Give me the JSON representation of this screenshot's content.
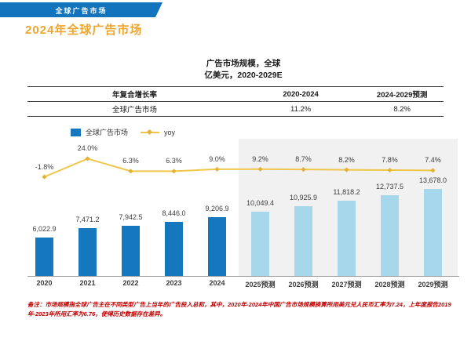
{
  "banner": {
    "label": "全球广告市场",
    "color": "#1274BC"
  },
  "title": {
    "text": "2024年全球广告市场",
    "color": "#EFA62F"
  },
  "table": {
    "headers": [
      "年复合增长率",
      "2020-2024",
      "2024-2029预测"
    ],
    "rows": [
      [
        "全球广告市场",
        "11.2%",
        "8.2%"
      ]
    ]
  },
  "legend": {
    "bar_label": "全球广告市场",
    "line_label": "yoy"
  },
  "chart_data": {
    "type": "bar",
    "title": "广告市场规模，全球",
    "subtitle": "亿美元，2020-2029E",
    "categories": [
      "2020",
      "2021",
      "2022",
      "2023",
      "2024",
      "2025预测",
      "2026预测",
      "2027预测",
      "2028预测",
      "2029预测"
    ],
    "series": [
      {
        "name": "全球广告市场",
        "type": "bar",
        "values": [
          6022.9,
          7471.2,
          7942.5,
          8446.0,
          9206.9,
          10049.4,
          10925.9,
          11818.2,
          12737.5,
          13678.0
        ],
        "labels": [
          "6,022.9",
          "7,471.2",
          "7,942.5",
          "8,446.0",
          "9,206.9",
          "10,049.4",
          "10,925.9",
          "11,818.2",
          "12,737.5",
          "13,678.0"
        ]
      },
      {
        "name": "yoy",
        "type": "line",
        "values": [
          -1.8,
          24.0,
          6.3,
          6.3,
          9.0,
          9.2,
          8.7,
          8.2,
          7.8,
          7.4
        ],
        "labels": [
          "-1.8%",
          "24.0%",
          "6.3%",
          "6.3%",
          "9.0%",
          "9.2%",
          "8.7%",
          "8.2%",
          "7.8%",
          "7.4%"
        ]
      }
    ],
    "forecast_start_index": 5,
    "grid": "off",
    "legend_position": "top-left",
    "colors": {
      "bar_actual": "#1577BE",
      "bar_forecast": "#A7D7EB",
      "line": "#F0C64A",
      "line_marker": "#E2B33B",
      "forecast_bg": "#F1F1F1",
      "footnote": "#C00000"
    }
  },
  "footnote": "备注：市场规模指全球广告主在不同类型广告上当年的广告投入总和，其中，2020年-2024年中国广告市场规模换算所用美元兑人民币汇率为7.24，上年度报告2019年-2023年所用汇率为6.76，使得历史数据存在差异。"
}
